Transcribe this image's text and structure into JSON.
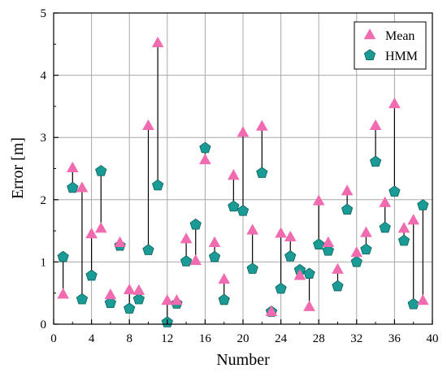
{
  "chart_data": {
    "type": "scatter",
    "xlabel": "Number",
    "ylabel": "Error [m]",
    "xlim": [
      0,
      40
    ],
    "ylim": [
      0,
      5
    ],
    "x_ticks": [
      "0",
      "4",
      "8",
      "12",
      "16",
      "20",
      "24",
      "28",
      "32",
      "36",
      "40"
    ],
    "y_ticks": [
      "0",
      "1",
      "2",
      "3",
      "4",
      "5"
    ],
    "grid": true,
    "legend_position": "top-right",
    "x": [
      1,
      2,
      3,
      4,
      5,
      6,
      7,
      8,
      9,
      10,
      11,
      12,
      13,
      14,
      15,
      16,
      17,
      18,
      19,
      20,
      21,
      22,
      23,
      24,
      25,
      26,
      27,
      28,
      29,
      30,
      31,
      32,
      33,
      34,
      35,
      36,
      37,
      38,
      39
    ],
    "series": [
      {
        "name": "Mean",
        "marker": "triangle",
        "color": "#f06bb0",
        "values": [
          0.48,
          2.51,
          2.19,
          1.45,
          1.54,
          0.47,
          1.31,
          0.55,
          0.54,
          3.19,
          4.52,
          0.38,
          0.38,
          1.37,
          1.02,
          2.64,
          1.31,
          0.72,
          2.39,
          3.08,
          1.51,
          3.18,
          0.2,
          1.46,
          1.4,
          0.78,
          0.28,
          1.98,
          1.31,
          0.88,
          2.14,
          1.15,
          1.47,
          3.19,
          1.95,
          3.54,
          1.54,
          1.67,
          0.38
        ]
      },
      {
        "name": "HMM",
        "marker": "pentagon",
        "color": "#1a9b95",
        "values": [
          1.08,
          2.19,
          0.4,
          0.78,
          2.46,
          0.34,
          1.26,
          0.25,
          0.4,
          1.19,
          2.23,
          0.03,
          0.33,
          1.01,
          1.6,
          2.83,
          1.08,
          0.39,
          1.89,
          1.82,
          0.89,
          2.43,
          0.2,
          0.57,
          1.09,
          0.87,
          0.81,
          1.28,
          1.18,
          0.61,
          1.84,
          1.0,
          1.2,
          2.61,
          1.55,
          2.13,
          1.34,
          0.32,
          1.91
        ]
      }
    ]
  }
}
